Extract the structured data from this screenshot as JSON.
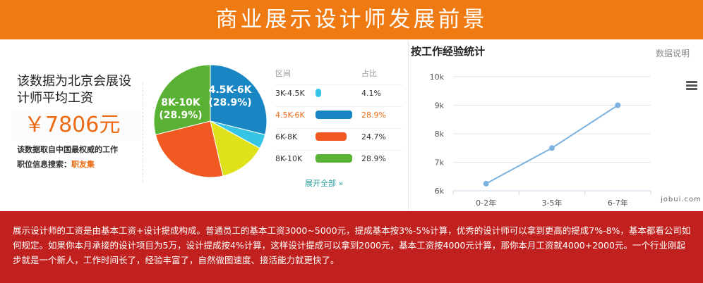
{
  "banner": {
    "title": "商业展示设计师发展前景"
  },
  "salary": {
    "description": "该数据为北京会展设计师平均工资",
    "amount": "￥7806元",
    "source": "该数据取自中国最权威的工作",
    "search_prefix": "职位信息搜索：",
    "search_link": "职友集"
  },
  "distribution": {
    "header_range": "区间",
    "header_pct": "占比",
    "rows": [
      {
        "range": "3K-4.5K",
        "pct": "4.1%",
        "value": 4.1,
        "color": "#37c5e6"
      },
      {
        "range": "4.5K-6K",
        "pct": "28.9%",
        "value": 28.9,
        "color": "#1986c4",
        "active": true
      },
      {
        "range": "6K-8K",
        "pct": "24.7%",
        "value": 24.7,
        "color": "#f05a22"
      },
      {
        "range": "8K-10K",
        "pct": "28.9%",
        "value": 28.9,
        "color": "#5ab234"
      }
    ],
    "expand_label": "展开全部 »"
  },
  "pie_labels": [
    {
      "range": "4.5K-6K",
      "pct": "(28.9%)"
    },
    {
      "range": "8K-10K",
      "pct": "(28.9%)"
    }
  ],
  "experience_panel": {
    "title": "按工作经验统计",
    "note": "数据说明",
    "watermark": "jobui.com"
  },
  "chart_data": [
    {
      "type": "pie",
      "categories": [
        "3K-4.5K",
        "4.5K-6K",
        "6K-8K",
        "8K-10K"
      ],
      "values": [
        4.1,
        28.9,
        24.7,
        28.9
      ],
      "colors": [
        "#37c5e6",
        "#1986c4",
        "#f05a22",
        "#5ab234"
      ],
      "title": "",
      "note": "Displayed percentages sum to 86.6%; remaining share is shown as a yellow slice without a visible label.",
      "unlabeled_slice_color": "#dfe21a"
    },
    {
      "type": "line",
      "title": "按工作经验统计",
      "categories": [
        "0-2年",
        "3-5年",
        "6-7年"
      ],
      "series": [
        {
          "values": [
            6.25,
            7.5,
            9.0
          ],
          "color": "#7db3e0"
        }
      ],
      "yticks": [
        "6k",
        "7k",
        "8k",
        "9k",
        "10k"
      ],
      "ylim": [
        6,
        10
      ],
      "grid": true
    }
  ],
  "footer": {
    "text": "展示设计师的工资是由基本工资+设计提成构成。普通员工的基本工资3000~5000元，提成基本按3%-5%计算，优秀的设计师可以拿到更高的提成7%-8%，基本都看公司如何规定。如果你本月承接的设计项目为5万，设计提成按4%计算，这样设计提成可以拿到2000元，基本工资按4000元计算，那你本月工资就4000+2000元。一个行业刚起步就是一个新人，工作时间长了，经验丰富了，自然做图速度、接活能力就更快了。"
  }
}
